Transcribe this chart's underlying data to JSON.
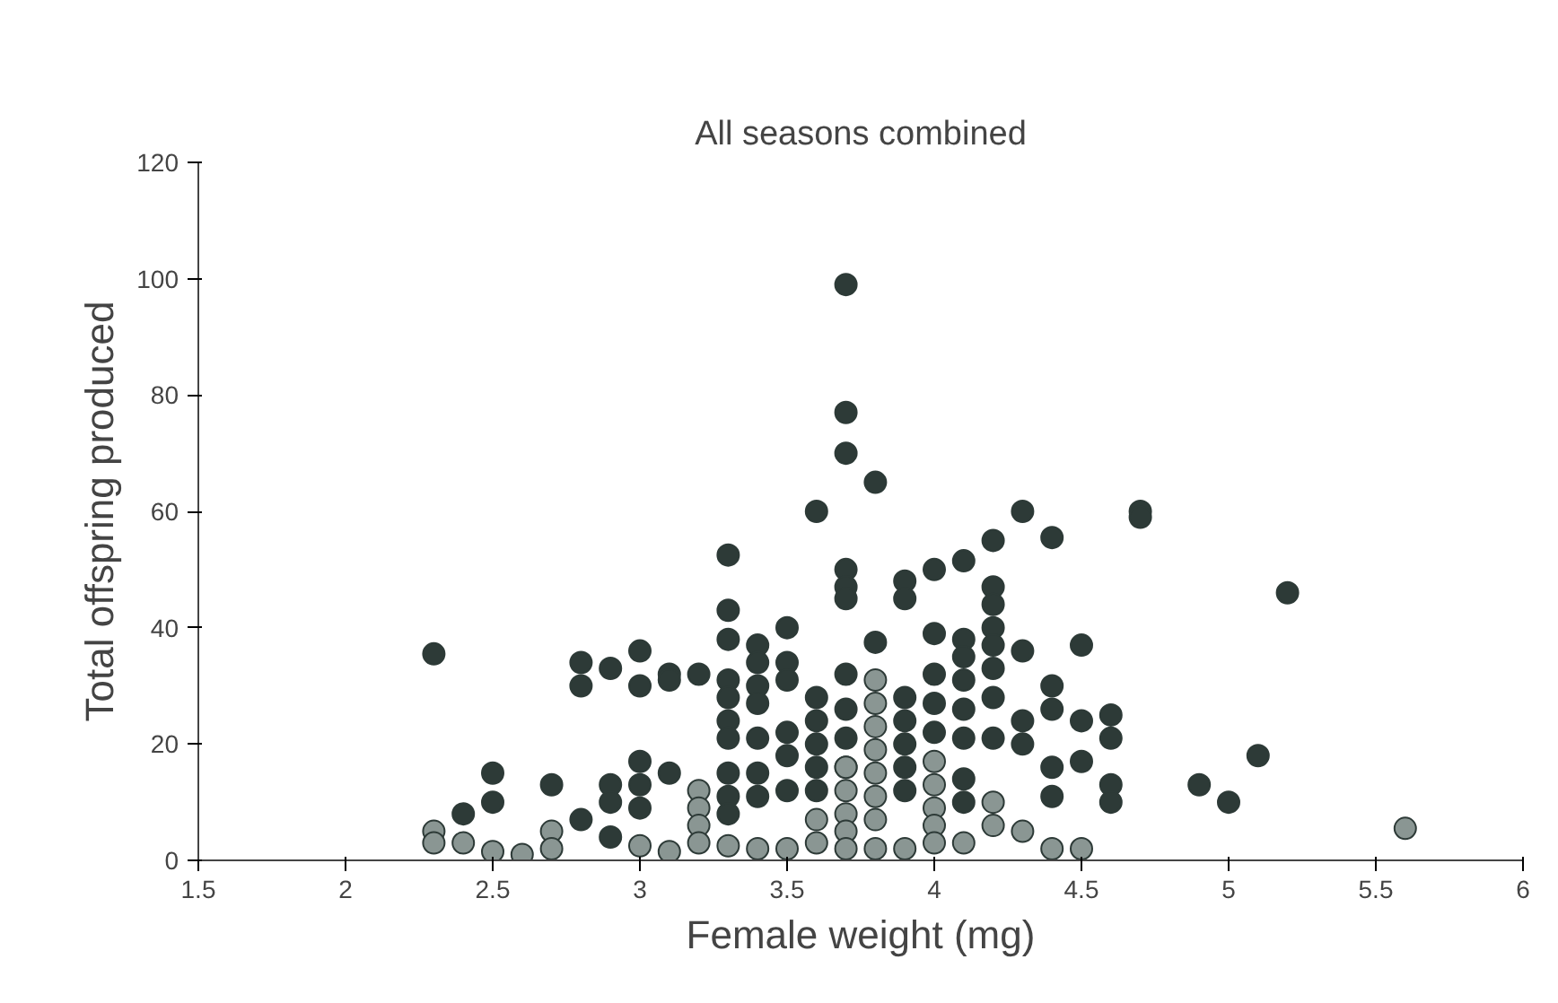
{
  "chart_data": {
    "type": "scatter",
    "title": "All seasons combined",
    "xlabel": "Female weight (mg)",
    "ylabel": "Total offspring produced",
    "xlim": [
      1.5,
      6
    ],
    "xticks": [
      1.5,
      2,
      2.5,
      3,
      3.5,
      4,
      4.5,
      5,
      5.5,
      6
    ],
    "ylim": [
      0,
      120
    ],
    "yticks": [
      0,
      20,
      40,
      60,
      80,
      100,
      120
    ],
    "grid": false,
    "marker": "circle",
    "series": [
      {
        "color": "#2d3a37",
        "x": [
          2.3,
          2.4,
          2.5,
          2.5,
          2.7,
          2.8,
          2.8,
          2.8,
          2.9,
          2.9,
          2.9,
          2.9,
          3.0,
          3.0,
          3.0,
          3.0,
          3.0,
          3.1,
          3.1,
          3.1,
          3.2,
          3.3,
          3.3,
          3.3,
          3.3,
          3.3,
          3.3,
          3.3,
          3.3,
          3.3,
          3.3,
          3.4,
          3.4,
          3.4,
          3.4,
          3.4,
          3.4,
          3.4,
          3.5,
          3.5,
          3.5,
          3.5,
          3.5,
          3.5,
          3.6,
          3.6,
          3.6,
          3.6,
          3.6,
          3.6,
          3.7,
          3.7,
          3.7,
          3.7,
          3.7,
          3.7,
          3.7,
          3.7,
          3.7,
          3.7,
          3.8,
          3.8,
          3.9,
          3.9,
          3.9,
          3.9,
          3.9,
          3.9,
          3.9,
          4.0,
          4.0,
          4.0,
          4.0,
          4.0,
          4.1,
          4.1,
          4.1,
          4.1,
          4.1,
          4.1,
          4.1,
          4.1,
          4.2,
          4.2,
          4.2,
          4.2,
          4.2,
          4.2,
          4.2,
          4.2,
          4.3,
          4.3,
          4.3,
          4.3,
          4.4,
          4.4,
          4.4,
          4.4,
          4.4,
          4.5,
          4.5,
          4.5,
          4.6,
          4.6,
          4.6,
          4.6,
          4.7,
          4.7,
          4.9,
          5.0,
          5.1,
          5.2
        ],
        "values": [
          35.5,
          8,
          15,
          10,
          13,
          34,
          30,
          7,
          33,
          13,
          10,
          4,
          36,
          30,
          17,
          13,
          9,
          32,
          31,
          15,
          32,
          52.5,
          43,
          38,
          31,
          28,
          24,
          21,
          15,
          11,
          8,
          37,
          34,
          30,
          27,
          21,
          15,
          11,
          40,
          34,
          31,
          22,
          18,
          12,
          60,
          28,
          24,
          20,
          16,
          12,
          99,
          77,
          70,
          50,
          47,
          45,
          32,
          26,
          21,
          16,
          65,
          37.5,
          48,
          45,
          28,
          24,
          20,
          16,
          12,
          50,
          39,
          32,
          27,
          22,
          51.5,
          38,
          35,
          31,
          26,
          21,
          14,
          10,
          55,
          47,
          44,
          40,
          37,
          33,
          28,
          21,
          60,
          36,
          24,
          20,
          55.5,
          30,
          26,
          16,
          11,
          37,
          24,
          17,
          25,
          21,
          13,
          10,
          60,
          59,
          13,
          10,
          18,
          46
        ]
      },
      {
        "color": "#8a9693",
        "x": [
          2.3,
          2.3,
          2.4,
          2.5,
          2.6,
          2.7,
          2.7,
          3.0,
          3.1,
          3.2,
          3.2,
          3.2,
          3.2,
          3.3,
          3.4,
          3.5,
          3.6,
          3.6,
          3.7,
          3.7,
          3.7,
          3.7,
          3.7,
          3.8,
          3.8,
          3.8,
          3.8,
          3.8,
          3.8,
          3.8,
          3.8,
          3.9,
          4.0,
          4.0,
          4.0,
          4.0,
          4.0,
          4.1,
          4.2,
          4.2,
          4.3,
          4.4,
          4.5,
          5.6
        ],
        "values": [
          5,
          3,
          3,
          1.5,
          1,
          5,
          2,
          2.5,
          1.5,
          12,
          9,
          6,
          3,
          2.5,
          2,
          2,
          7,
          3,
          16,
          12,
          8,
          5,
          2,
          31,
          27,
          23,
          19,
          15,
          11,
          7,
          2,
          2,
          17,
          13,
          9,
          6,
          3,
          3,
          10,
          6,
          5,
          2,
          2,
          5.5
        ]
      }
    ]
  }
}
